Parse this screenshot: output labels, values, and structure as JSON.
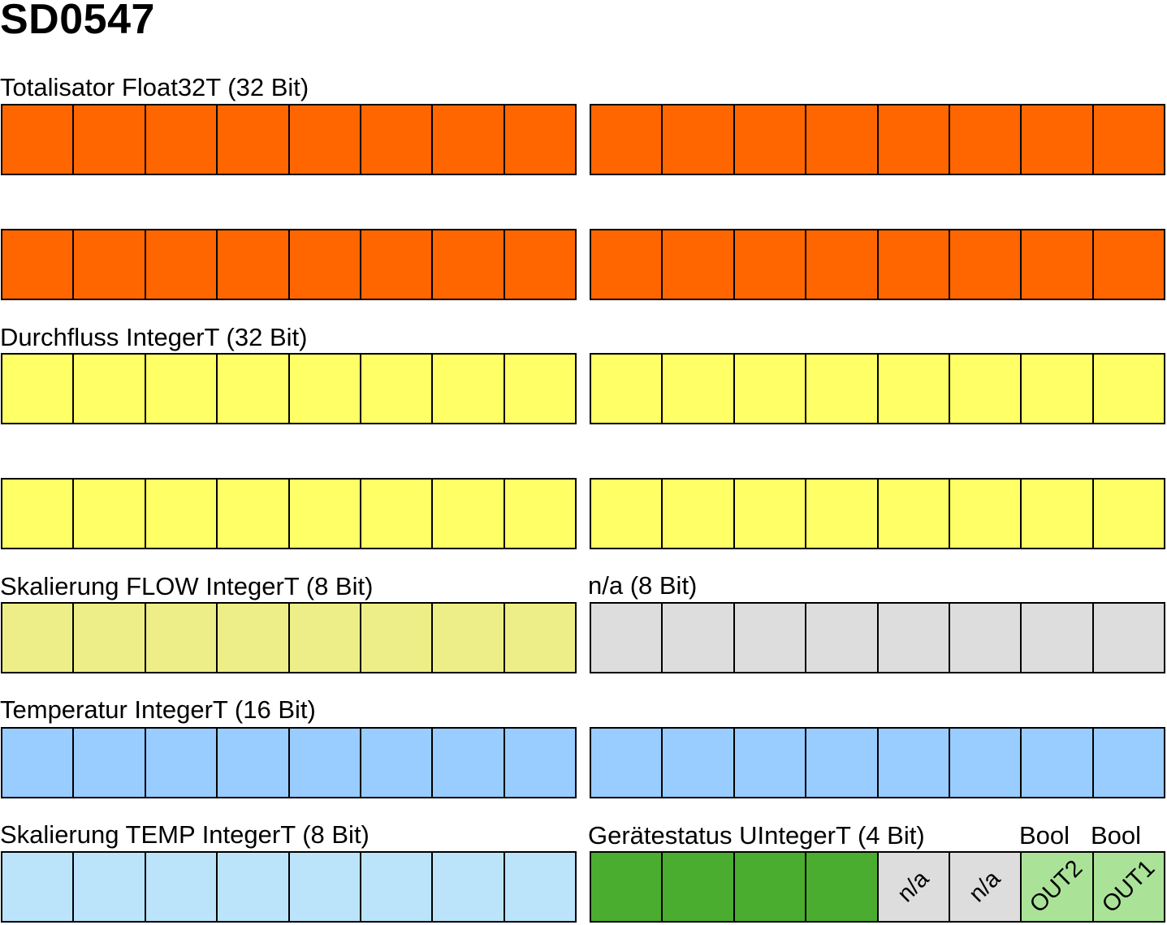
{
  "title": "SD0547",
  "colors": {
    "orange": "#ff6600",
    "yellow": "#ffff66",
    "pale_yellow": "#eeee88",
    "gray": "#dddddd",
    "blue": "#99ccff",
    "light_blue": "#bbe4fb",
    "green": "#4aad2f",
    "light_green": "#aae398",
    "outline": "#000000"
  },
  "labels": {
    "totalisator": "Totalisator Float32T (32 Bit)",
    "durchfluss": "Durchfluss IntegerT (32 Bit)",
    "skalierung_flow": "Skalierung FLOW IntegerT (8 Bit)",
    "na_8bit": "n/a (8 Bit)",
    "temperatur": "Temperatur IntegerT (16 Bit)",
    "skalierung_temp": "Skalierung TEMP IntegerT (8 Bit)",
    "geraetestatus": "Gerätestatus UIntegerT (4 Bit)",
    "bool_out2": "Bool",
    "bool_out1": "Bool"
  },
  "cell_texts": {
    "na1": "n/a",
    "na2": "n/a",
    "out2": "OUT2",
    "out1": "OUT1"
  }
}
